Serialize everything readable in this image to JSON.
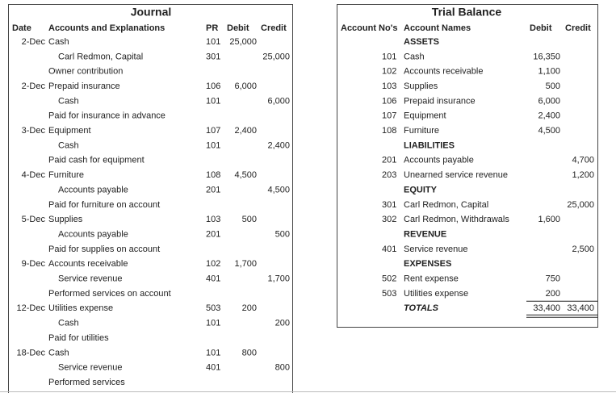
{
  "journal": {
    "title": "Journal",
    "headers": {
      "date": "Date",
      "account": "Accounts and Explanations",
      "pr": "PR",
      "debit": "Debit",
      "credit": "Credit"
    },
    "rows": [
      {
        "date": "2-Dec",
        "account": "Cash",
        "pr": "101",
        "debit": "25,000"
      },
      {
        "account": "Carl Redmon, Capital",
        "pr": "301",
        "credit": "25,000"
      },
      {
        "account": "Owner contribution"
      },
      {
        "date": "2-Dec",
        "account": "Prepaid insurance",
        "pr": "106",
        "debit": "6,000"
      },
      {
        "account": "Cash",
        "pr": "101",
        "credit": "6,000"
      },
      {
        "account": "Paid for insurance in advance"
      },
      {
        "date": "3-Dec",
        "account": "Equipment",
        "pr": "107",
        "debit": "2,400"
      },
      {
        "account": "Cash",
        "pr": "101",
        "credit": "2,400"
      },
      {
        "account": "Paid cash for equipment"
      },
      {
        "date": "4-Dec",
        "account": "Furniture",
        "pr": "108",
        "debit": "4,500"
      },
      {
        "account": "Accounts payable",
        "pr": "201",
        "credit": "4,500"
      },
      {
        "account": "Paid for furniture on account"
      },
      {
        "date": "5-Dec",
        "account": "Supplies",
        "pr": "103",
        "debit": "500"
      },
      {
        "account": "Accounts payable",
        "pr": "201",
        "credit": "500"
      },
      {
        "account": "Paid for supplies on account"
      },
      {
        "date": "9-Dec",
        "account": "Accounts receivable",
        "pr": "102",
        "debit": "1,700"
      },
      {
        "account": "Service revenue",
        "pr": "401",
        "credit": "1,700"
      },
      {
        "account": "Performed services on account"
      },
      {
        "date": "12-Dec",
        "account": "Utilities expense",
        "pr": "503",
        "debit": "200"
      },
      {
        "account": "Cash",
        "pr": "101",
        "credit": "200"
      },
      {
        "account": "Paid for utilities"
      },
      {
        "date": "18-Dec",
        "account": "Cash",
        "pr": "101",
        "debit": "800"
      },
      {
        "account": "Service revenue",
        "pr": "401",
        "credit": "800"
      },
      {
        "account": "Performed services"
      }
    ]
  },
  "trial_balance": {
    "title": "Trial Balance",
    "headers": {
      "number": "Account No's",
      "name": "Account Names",
      "debit": "Debit",
      "credit": "Credit"
    },
    "rows": [
      {
        "section": "ASSETS"
      },
      {
        "number": "101",
        "name": "Cash",
        "debit": "16,350"
      },
      {
        "number": "102",
        "name": "Accounts receivable",
        "debit": "1,100"
      },
      {
        "number": "103",
        "name": "Supplies",
        "debit": "500"
      },
      {
        "number": "106",
        "name": "Prepaid insurance",
        "debit": "6,000"
      },
      {
        "number": "107",
        "name": "Equipment",
        "debit": "2,400"
      },
      {
        "number": "108",
        "name": "Furniture",
        "debit": "4,500"
      },
      {
        "section": "LIABILITIES"
      },
      {
        "number": "201",
        "name": "Accounts payable",
        "credit": "4,700"
      },
      {
        "number": "203",
        "name": "Unearned service revenue",
        "credit": "1,200"
      },
      {
        "section": "EQUITY"
      },
      {
        "number": "301",
        "name": "Carl Redmon, Capital",
        "credit": "25,000"
      },
      {
        "number": "302",
        "name": "Carl Redmon, Withdrawals",
        "debit": "1,600"
      },
      {
        "section": "REVENUE"
      },
      {
        "number": "401",
        "name": "Service revenue",
        "credit": "2,500"
      },
      {
        "section": "EXPENSES"
      },
      {
        "number": "502",
        "name": "Rent expense",
        "debit": "750"
      },
      {
        "number": "503",
        "name": "Utilities expense",
        "debit": "200"
      }
    ],
    "totals": {
      "label": "TOTALS",
      "debit": "33,400",
      "credit": "33,400"
    }
  }
}
